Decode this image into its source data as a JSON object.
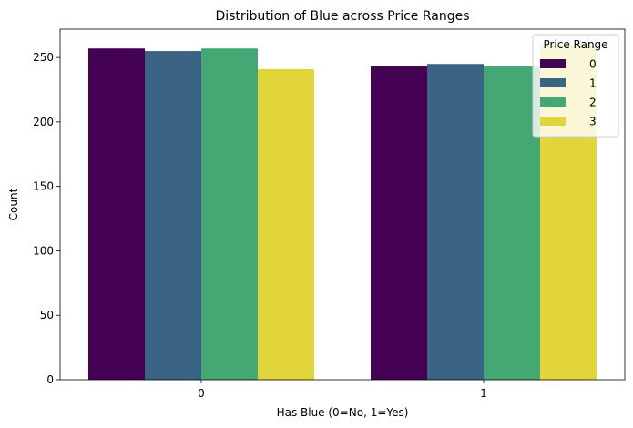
{
  "chart_data": {
    "type": "bar",
    "title": "Distribution of Blue across Price Ranges",
    "xlabel": "Has Blue (0=No, 1=Yes)",
    "ylabel": "Count",
    "categories": [
      "0",
      "1"
    ],
    "ylim": [
      0,
      272
    ],
    "yticks": [
      0,
      50,
      100,
      150,
      200,
      250
    ],
    "grid": false,
    "legend": {
      "title": "Price Range",
      "placement": "top-right"
    },
    "series": [
      {
        "name": "0",
        "color": "#440154",
        "values": [
          257,
          243
        ]
      },
      {
        "name": "1",
        "color": "#3b6384",
        "values": [
          255,
          245
        ]
      },
      {
        "name": "2",
        "color": "#44a774",
        "values": [
          257,
          243
        ]
      },
      {
        "name": "3",
        "color": "#e2d43b",
        "values": [
          241,
          259
        ]
      }
    ]
  }
}
